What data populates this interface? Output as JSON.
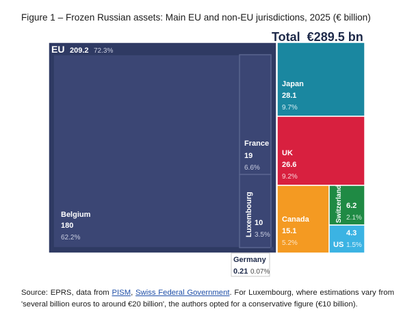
{
  "title": "Figure 1 – Frozen Russian assets: Main EU and non-EU jurisdictions, 2025 (€ billion)",
  "total": {
    "label": "Total",
    "value": "€289.5 bn"
  },
  "chart_data": {
    "type": "treemap",
    "unit": "€ billion",
    "total": 289.5,
    "groups": [
      {
        "name": "EU",
        "value": 209.2,
        "share": "72.3%",
        "color": "#2f3a63",
        "children": [
          {
            "name": "Belgium",
            "value": 180,
            "share": "62.2%",
            "color": "#3b4674"
          },
          {
            "name": "France",
            "value": 19,
            "share": "6.6%",
            "color": "#3b4674"
          },
          {
            "name": "Luxembourg",
            "value": 10,
            "share": "3.5%",
            "color": "#3b4674"
          },
          {
            "name": "Germany",
            "value": 0.21,
            "share": "0.07%",
            "color": "#3b4674"
          }
        ]
      }
    ],
    "others": [
      {
        "name": "Japan",
        "value": 28.1,
        "share": "9.7%",
        "color": "#1a87a0"
      },
      {
        "name": "UK",
        "value": 26.6,
        "share": "9.2%",
        "color": "#d8203f"
      },
      {
        "name": "Canada",
        "value": 15.1,
        "share": "5.2%",
        "color": "#f49a22"
      },
      {
        "name": "Switzerland",
        "value": 6.2,
        "share": "2.1%",
        "color": "#1f8a44"
      },
      {
        "name": "US",
        "value": 4.3,
        "share": "1.5%",
        "color": "#3bb3e3"
      }
    ]
  },
  "source": {
    "prefix": "Source: EPRS, data from ",
    "link1": "PISM",
    "sep": ", ",
    "link2": "Swiss Federal Government",
    "suffix": ". For Luxembourg, where estimations vary from 'several billion euros to around €20 billion', the authors opted for a conservative figure (€10 billion)."
  }
}
